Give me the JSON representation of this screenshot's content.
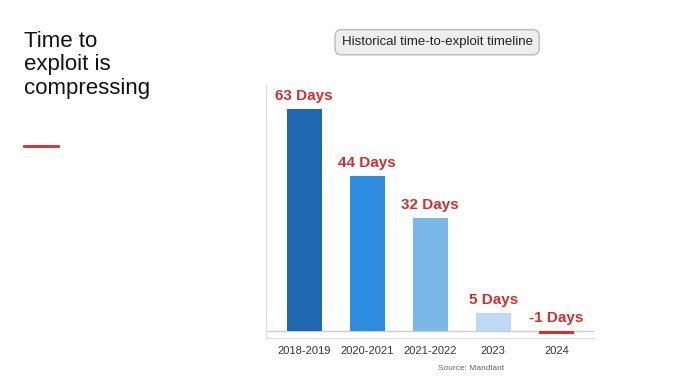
{
  "chart_data": {
    "type": "bar",
    "title": "Time to exploit is compressing",
    "subtitle": "Historical time-to-exploit timeline",
    "annotations": [
      "Source: Mandiant"
    ],
    "categories": [
      "2018-2019",
      "2020-2021",
      "2021-2022",
      "2023",
      "2024"
    ],
    "values": [
      63,
      44,
      32,
      5,
      -1
    ],
    "value_labels": [
      "63 Days",
      "44 Days",
      "32 Days",
      "5 Days",
      "-1 Days"
    ],
    "colors": [
      "#1f67b1",
      "#2e8de0",
      "#7ab8ea",
      "#bcdaf5",
      "#d42e2e"
    ],
    "ylim": [
      -2,
      70
    ],
    "data_labels": true,
    "tick_labels": "x",
    "grid": false
  }
}
